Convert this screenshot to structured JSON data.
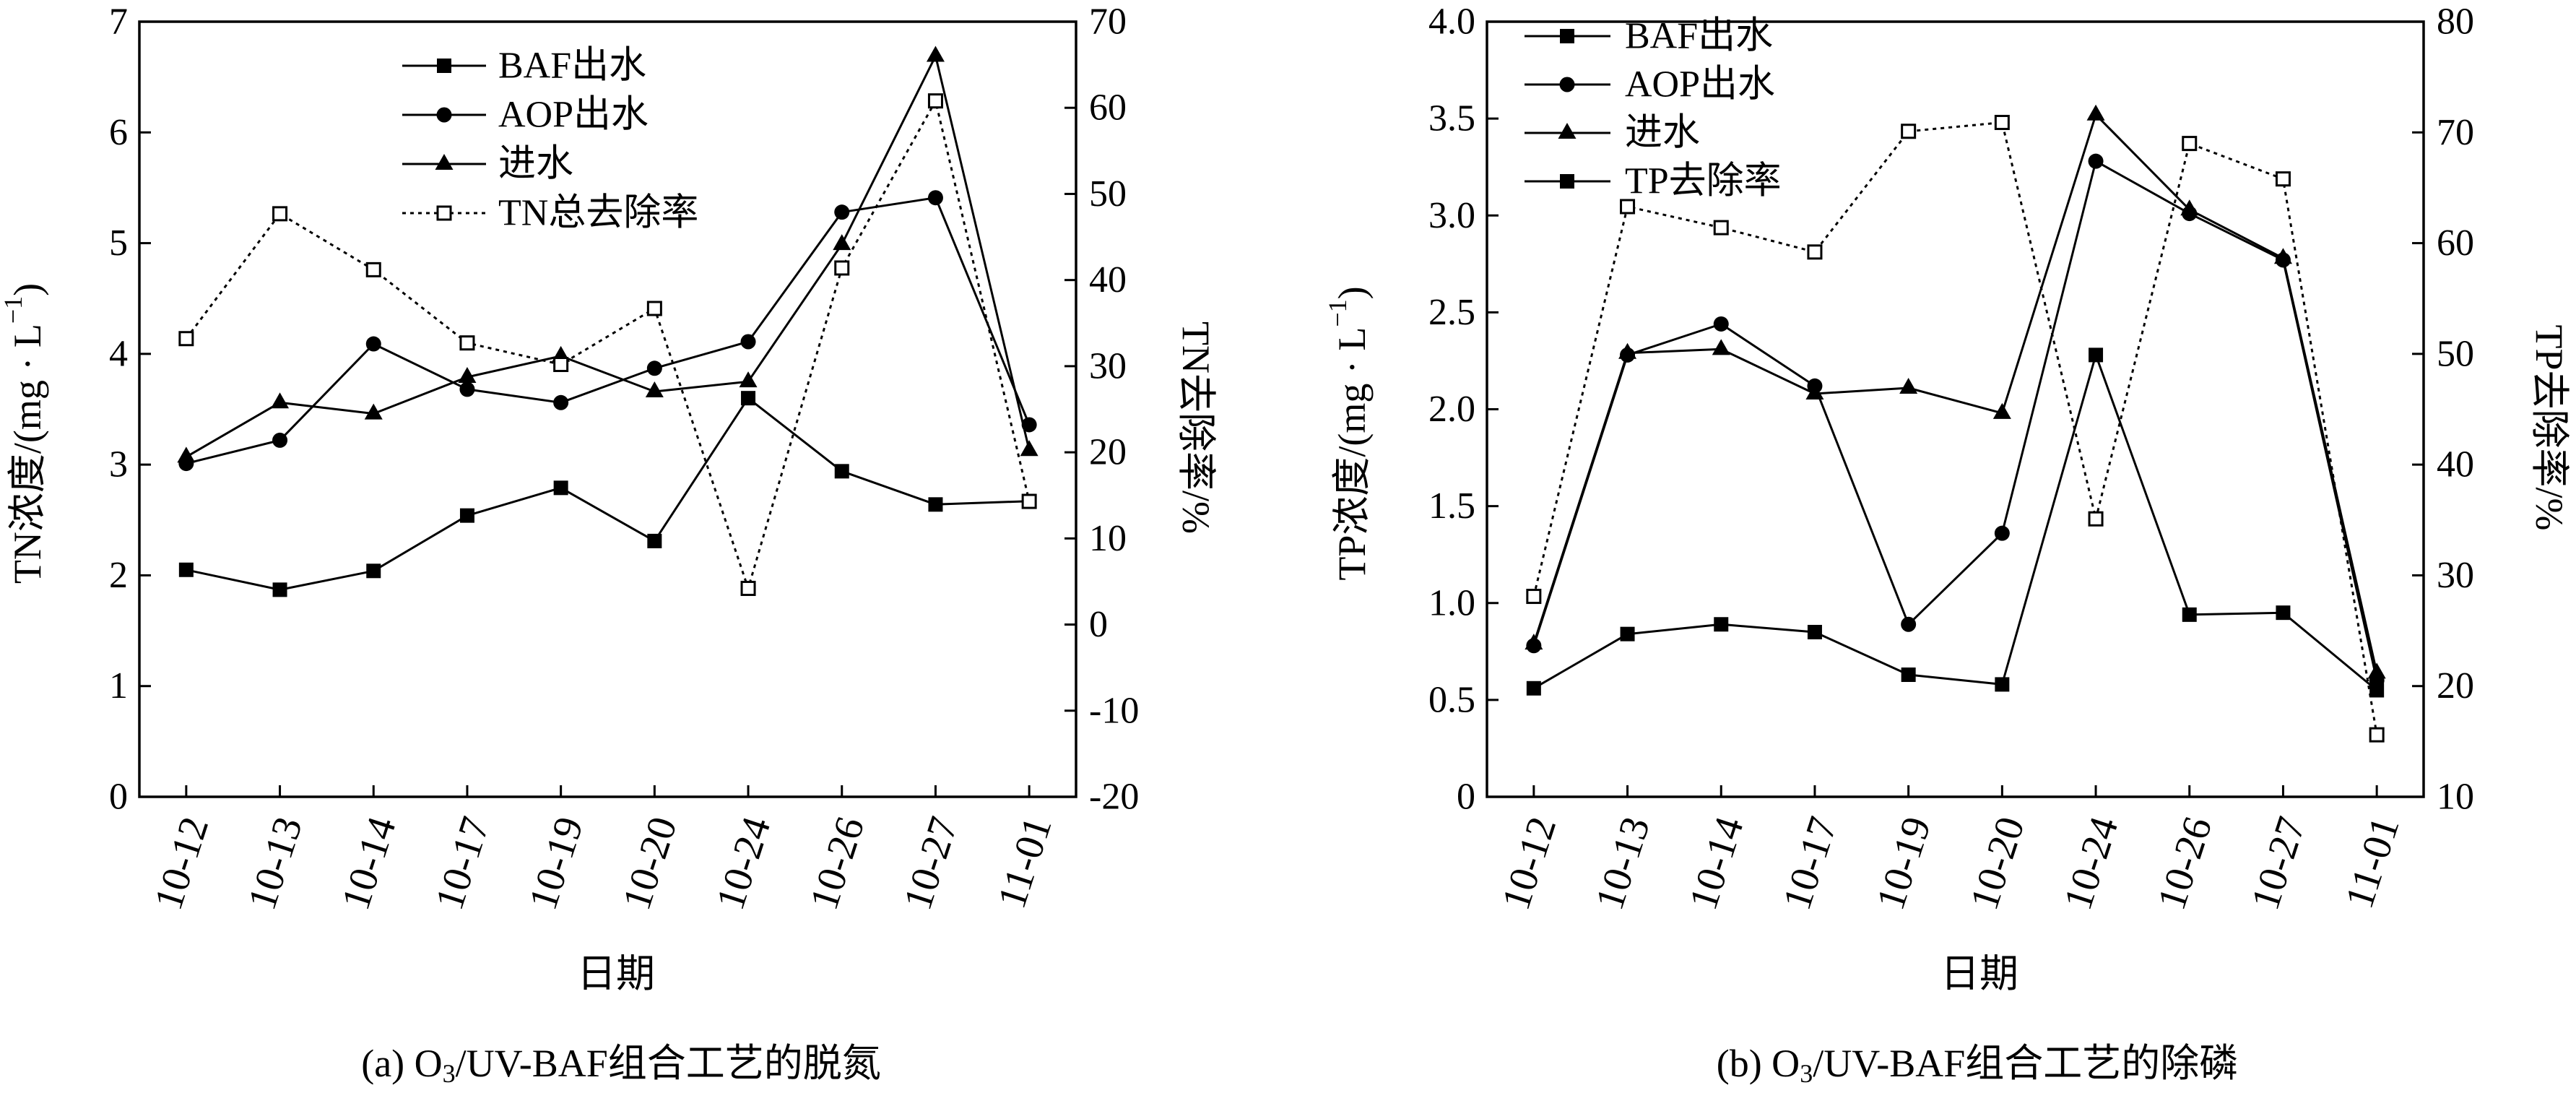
{
  "colors": {
    "ink": "#000000",
    "background": "#ffffff"
  },
  "chart_data": [
    {
      "type": "line",
      "caption": {
        "prefix": "(a) O",
        "sub": "3",
        "suffix": "/UV-BAF组合工艺的脱氮"
      },
      "xlabel": "日期",
      "ylabel": {
        "text": "TN浓度/(mg · L",
        "sup": "−1",
        "end": ")"
      },
      "y2label": "TN去除率/%",
      "categories": [
        "10-12",
        "10-13",
        "10-14",
        "10-17",
        "10-19",
        "10-20",
        "10-24",
        "10-26",
        "10-27",
        "11-01"
      ],
      "ylim": [
        0,
        7
      ],
      "yticks": [
        "0",
        "1",
        "2",
        "3",
        "4",
        "5",
        "6",
        "7"
      ],
      "y2lim": [
        -20,
        70
      ],
      "y2ticks": [
        "-20",
        "-10",
        "0",
        "10",
        "20",
        "30",
        "40",
        "50",
        "60",
        "70"
      ],
      "grid": false,
      "legend_position": "top-center",
      "series": [
        {
          "name": "BAF出水",
          "axis": "left",
          "marker": "filled-square",
          "line": "solid",
          "values": [
            2.05,
            1.87,
            2.04,
            2.54,
            2.79,
            2.31,
            3.6,
            2.94,
            2.64,
            2.67
          ]
        },
        {
          "name": "AOP出水",
          "axis": "left",
          "marker": "circle",
          "line": "solid",
          "values": [
            3.01,
            3.22,
            4.09,
            3.68,
            3.56,
            3.87,
            4.11,
            5.28,
            5.41,
            3.36
          ]
        },
        {
          "name": "进水",
          "axis": "left",
          "marker": "triangle",
          "line": "solid",
          "values": [
            3.07,
            3.56,
            3.46,
            3.79,
            3.98,
            3.66,
            3.75,
            4.99,
            6.69,
            3.13
          ]
        },
        {
          "name": "TN总去除率",
          "axis": "right",
          "marker": "open-square",
          "line": "dotted",
          "values": [
            33.2,
            47.7,
            41.2,
            32.7,
            30.2,
            36.7,
            4.2,
            41.4,
            60.8,
            14.3
          ]
        }
      ]
    },
    {
      "type": "line",
      "caption": {
        "prefix": "(b) O",
        "sub": "3",
        "suffix": "/UV-BAF组合工艺的除磷"
      },
      "xlabel": "日期",
      "ylabel": {
        "text": "TP浓度/(mg · L",
        "sup": "−1",
        "end": ")"
      },
      "y2label": "TP去除率/%",
      "categories": [
        "10-12",
        "10-13",
        "10-14",
        "10-17",
        "10-19",
        "10-20",
        "10-24",
        "10-26",
        "10-27",
        "11-01"
      ],
      "ylim": [
        0,
        4
      ],
      "yticks": [
        "0",
        "0.5",
        "1.0",
        "1.5",
        "2.0",
        "2.5",
        "3.0",
        "3.5",
        "4.0"
      ],
      "y2lim": [
        10,
        80
      ],
      "y2ticks": [
        "10",
        "20",
        "30",
        "40",
        "50",
        "60",
        "70",
        "80"
      ],
      "grid": false,
      "legend_position": "top-left",
      "series": [
        {
          "name": "BAF出水",
          "axis": "left",
          "marker": "filled-square",
          "line": "solid",
          "values": [
            0.56,
            0.84,
            0.89,
            0.85,
            0.63,
            0.58,
            2.28,
            0.94,
            0.95,
            0.55
          ]
        },
        {
          "name": "AOP出水",
          "axis": "left",
          "marker": "circle",
          "line": "solid",
          "values": [
            0.78,
            2.28,
            2.44,
            2.12,
            0.89,
            1.36,
            3.28,
            3.01,
            2.77,
            0.6
          ]
        },
        {
          "name": "进水",
          "axis": "left",
          "marker": "triangle",
          "line": "solid",
          "values": [
            0.79,
            2.29,
            2.31,
            2.08,
            2.11,
            1.98,
            3.52,
            3.03,
            2.78,
            0.64
          ]
        },
        {
          "name": "TP去除率",
          "axis": "right",
          "marker": "open-square",
          "line": "dotted",
          "legend_marker": "filled-square",
          "legend_line": "solid",
          "values": [
            28.1,
            63.3,
            61.4,
            59.2,
            70.1,
            70.9,
            35.1,
            69.0,
            65.8,
            15.6
          ]
        }
      ]
    }
  ]
}
